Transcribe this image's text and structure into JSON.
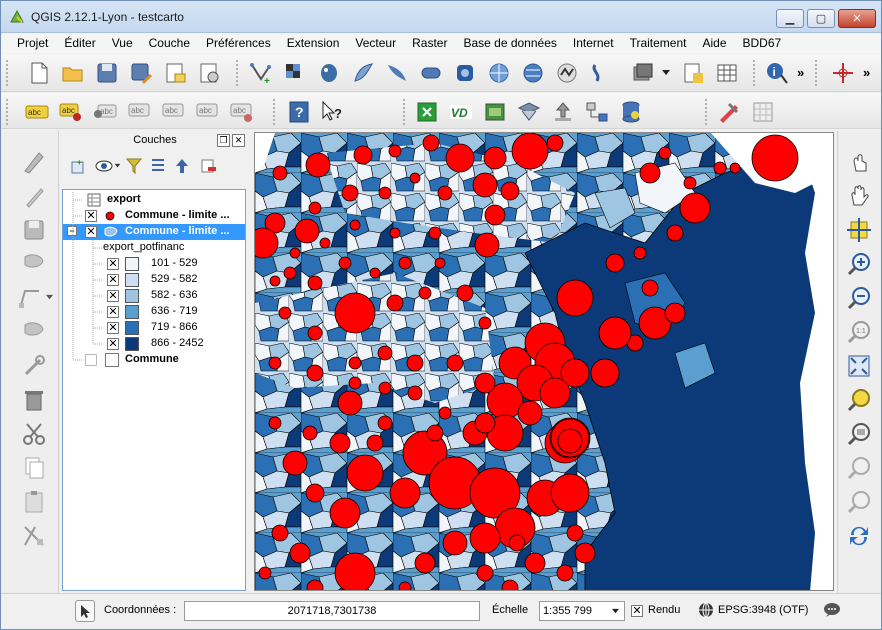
{
  "window": {
    "title": "QGIS 2.12.1-Lyon - testcarto"
  },
  "menu": [
    "Projet",
    "Éditer",
    "Vue",
    "Couche",
    "Préférences",
    "Extension",
    "Vecteur",
    "Raster",
    "Base de données",
    "Internet",
    "Traitement",
    "Aide",
    "BDD67"
  ],
  "panel": {
    "title": "Couches"
  },
  "layers": {
    "export": "export",
    "commune_limite_1": "Commune - limite ...",
    "commune_limite_2": "Commune - limite ...",
    "attribute": "export_potfinanc",
    "classes": [
      {
        "label": "101 - 529",
        "color": "#f2f6fb"
      },
      {
        "label": "529 - 582",
        "color": "#cddff0"
      },
      {
        "label": "582 - 636",
        "color": "#9ec6e2"
      },
      {
        "label": "636 - 719",
        "color": "#5a9fd0"
      },
      {
        "label": "719 - 866",
        "color": "#2b70b5"
      },
      {
        "label": "866 - 2452",
        "color": "#0c3a78"
      }
    ],
    "commune": "Commune"
  },
  "status": {
    "coord_label": "Coordonnées :",
    "coord_value": "2071718,7301738",
    "scale_label": "Échelle",
    "scale_value": "1:355 799",
    "render_label": "Rendu",
    "crs": "EPSG:3948 (OTF)"
  },
  "colors": {
    "point": "#ff0000",
    "selection": "#3399ff"
  }
}
